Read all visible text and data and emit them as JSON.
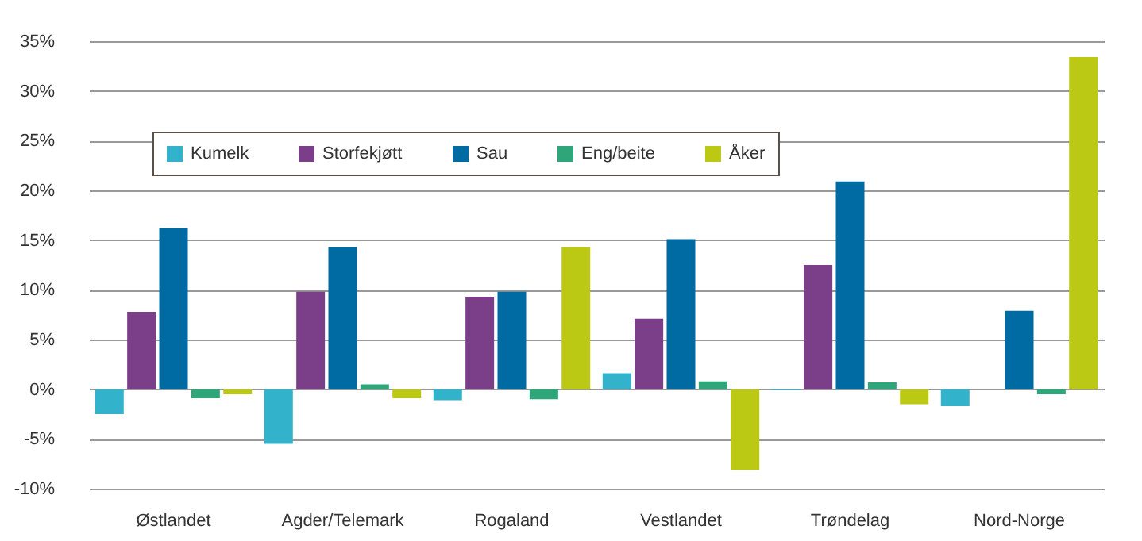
{
  "chart_data": {
    "type": "bar",
    "categories": [
      "Østlandet",
      "Agder/Telemark",
      "Rogaland",
      "Vestlandet",
      "Trøndelag",
      "Nord-Norge"
    ],
    "series": [
      {
        "name": "Kumelk",
        "color": "#33b2cc",
        "values": [
          -2.5,
          -5.5,
          -1.1,
          1.6,
          -0.1,
          -1.7
        ]
      },
      {
        "name": "Storfekjøtt",
        "color": "#7b3f8a",
        "values": [
          7.8,
          9.8,
          9.3,
          7.1,
          12.5,
          null
        ]
      },
      {
        "name": "Sau",
        "color": "#006ba3",
        "values": [
          16.2,
          14.3,
          9.8,
          15.1,
          20.9,
          7.9
        ]
      },
      {
        "name": "Eng/beite",
        "color": "#2ea67a",
        "values": [
          -0.9,
          0.5,
          -1.0,
          0.8,
          0.7,
          -0.5
        ]
      },
      {
        "name": "Åker",
        "color": "#bcc914",
        "values": [
          -0.5,
          -0.9,
          14.3,
          -8.1,
          -1.5,
          33.4
        ]
      }
    ],
    "ylim": [
      -10,
      35
    ],
    "yticks": [
      {
        "value": -10,
        "label": "-10%"
      },
      {
        "value": -5,
        "label": "-5%"
      },
      {
        "value": 0,
        "label": "0%"
      },
      {
        "value": 5,
        "label": "5%"
      },
      {
        "value": 10,
        "label": "10%"
      },
      {
        "value": 15,
        "label": "15%"
      },
      {
        "value": 20,
        "label": "20%"
      },
      {
        "value": 25,
        "label": "25%"
      },
      {
        "value": 30,
        "label": "30%"
      },
      {
        "value": 35,
        "label": "35%"
      }
    ],
    "grid": "y",
    "legend": "top left"
  }
}
